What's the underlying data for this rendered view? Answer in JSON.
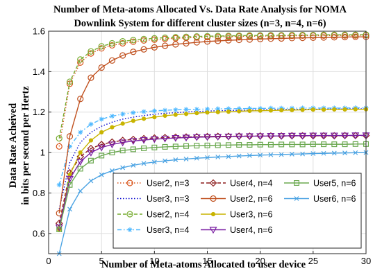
{
  "chart_data": {
    "type": "line",
    "title": [
      "Number of Meta-atoms Allocated Vs. Data Rate Analysis for NOMA",
      "Downlink System for different cluster sizes (n=3, n=4, n=6)"
    ],
    "xlabel": "Number of Meta-atoms Allocated to user device",
    "ylabel": [
      "Data Rate Acheived",
      "in bits per second per Hertz"
    ],
    "xlim": [
      0,
      30
    ],
    "ylim": [
      0.5,
      1.6
    ],
    "xticks": [
      0,
      5,
      10,
      15,
      20,
      25,
      30
    ],
    "yticks": [
      0.6,
      0.8,
      1,
      1.2,
      1.4,
      1.6
    ],
    "xtick_labels": [
      "0",
      "5",
      "10",
      "15",
      "20",
      "25",
      "30"
    ],
    "ytick_labels": [
      "0.6",
      "0.8",
      "1",
      "1.2",
      "1.4",
      "1.6"
    ],
    "grid": true,
    "legend_position": "bottom-right",
    "x": [
      1,
      2,
      3,
      4,
      5,
      6,
      7,
      8,
      9,
      10,
      11,
      12,
      13,
      14,
      15,
      16,
      17,
      18,
      19,
      20,
      21,
      22,
      23,
      24,
      25,
      26,
      27,
      28,
      29,
      30
    ],
    "series": [
      {
        "name": "User2, n=3",
        "color": "#d95319",
        "line": "dotted",
        "marker": "circle",
        "values": [
          1.03,
          1.34,
          1.445,
          1.49,
          1.515,
          1.53,
          1.54,
          1.548,
          1.554,
          1.558,
          1.562,
          1.565,
          1.567,
          1.569,
          1.571,
          1.572,
          1.573,
          1.574,
          1.575,
          1.576,
          1.576,
          1.577,
          1.577,
          1.578,
          1.578,
          1.578,
          1.579,
          1.579,
          1.579,
          1.58
        ]
      },
      {
        "name": "User3, n=3",
        "color": "#0000cd",
        "line": "dotted",
        "marker": "none",
        "values": [
          0.72,
          0.95,
          1.05,
          1.1,
          1.13,
          1.15,
          1.165,
          1.175,
          1.183,
          1.189,
          1.194,
          1.197,
          1.2,
          1.203,
          1.205,
          1.207,
          1.208,
          1.209,
          1.21,
          1.211,
          1.212,
          1.213,
          1.213,
          1.214,
          1.214,
          1.215,
          1.215,
          1.215,
          1.216,
          1.216
        ]
      },
      {
        "name": "User2, n=4",
        "color": "#77ac30",
        "line": "dashed",
        "marker": "circle",
        "values": [
          1.07,
          1.35,
          1.46,
          1.5,
          1.525,
          1.54,
          1.55,
          1.556,
          1.561,
          1.565,
          1.568,
          1.57,
          1.572,
          1.574,
          1.575,
          1.576,
          1.577,
          1.578,
          1.579,
          1.579,
          1.58,
          1.58,
          1.581,
          1.581,
          1.581,
          1.582,
          1.582,
          1.582,
          1.582,
          1.583
        ]
      },
      {
        "name": "User3, n=4",
        "color": "#4db8ff",
        "line": "dashdot",
        "marker": "star",
        "values": [
          0.84,
          1.03,
          1.1,
          1.14,
          1.165,
          1.18,
          1.19,
          1.197,
          1.202,
          1.206,
          1.209,
          1.211,
          1.213,
          1.214,
          1.215,
          1.216,
          1.217,
          1.217,
          1.218,
          1.218,
          1.219,
          1.219,
          1.219,
          1.22,
          1.22,
          1.22,
          1.22,
          1.22,
          1.221,
          1.221
        ]
      },
      {
        "name": "User4, n=4",
        "color": "#8b1a1a",
        "line": "dashed",
        "marker": "diamond",
        "values": [
          0.65,
          0.9,
          0.98,
          1.02,
          1.04,
          1.052,
          1.06,
          1.065,
          1.069,
          1.072,
          1.074,
          1.076,
          1.077,
          1.078,
          1.079,
          1.08,
          1.08,
          1.081,
          1.081,
          1.082,
          1.082,
          1.082,
          1.083,
          1.083,
          1.083,
          1.083,
          1.083,
          1.084,
          1.084,
          1.084
        ]
      },
      {
        "name": "User2, n=6",
        "color": "#c0501e",
        "line": "solid",
        "marker": "circle",
        "values": [
          0.7,
          1.08,
          1.265,
          1.37,
          1.42,
          1.455,
          1.48,
          1.498,
          1.51,
          1.52,
          1.528,
          1.535,
          1.54,
          1.545,
          1.549,
          1.552,
          1.555,
          1.557,
          1.559,
          1.561,
          1.563,
          1.564,
          1.566,
          1.567,
          1.568,
          1.569,
          1.57,
          1.571,
          1.572,
          1.572
        ]
      },
      {
        "name": "User3, n=6",
        "color": "#c8b400",
        "line": "solid",
        "marker": "point",
        "values": [
          0.62,
          0.89,
          1.0,
          1.06,
          1.1,
          1.125,
          1.143,
          1.157,
          1.167,
          1.175,
          1.182,
          1.187,
          1.191,
          1.195,
          1.198,
          1.2,
          1.202,
          1.204,
          1.206,
          1.207,
          1.208,
          1.209,
          1.21,
          1.211,
          1.212,
          1.212,
          1.213,
          1.213,
          1.214,
          1.214
        ]
      },
      {
        "name": "User4, n=6",
        "color": "#7a1fa2",
        "line": "solid",
        "marker": "triangle-down",
        "values": [
          0.63,
          0.87,
          0.955,
          1.0,
          1.025,
          1.04,
          1.05,
          1.057,
          1.062,
          1.066,
          1.069,
          1.072,
          1.074,
          1.076,
          1.077,
          1.078,
          1.079,
          1.08,
          1.081,
          1.081,
          1.082,
          1.082,
          1.083,
          1.083,
          1.084,
          1.084,
          1.084,
          1.084,
          1.085,
          1.085
        ]
      },
      {
        "name": "User5, n=6",
        "color": "#6aa84f",
        "line": "solid",
        "marker": "square",
        "values": [
          0.62,
          0.84,
          0.92,
          0.96,
          0.985,
          1.0,
          1.01,
          1.016,
          1.021,
          1.025,
          1.028,
          1.03,
          1.032,
          1.034,
          1.035,
          1.036,
          1.037,
          1.038,
          1.038,
          1.039,
          1.039,
          1.04,
          1.04,
          1.04,
          1.041,
          1.041,
          1.041,
          1.041,
          1.042,
          1.042
        ]
      },
      {
        "name": "User6, n=6",
        "color": "#4ba3e3",
        "line": "solid",
        "marker": "x",
        "values": [
          0.5,
          0.72,
          0.81,
          0.86,
          0.89,
          0.91,
          0.925,
          0.937,
          0.946,
          0.953,
          0.959,
          0.964,
          0.968,
          0.972,
          0.975,
          0.978,
          0.98,
          0.983,
          0.985,
          0.987,
          0.989,
          0.99,
          0.992,
          0.993,
          0.995,
          0.996,
          0.997,
          0.998,
          0.999,
          1.0
        ]
      }
    ]
  }
}
